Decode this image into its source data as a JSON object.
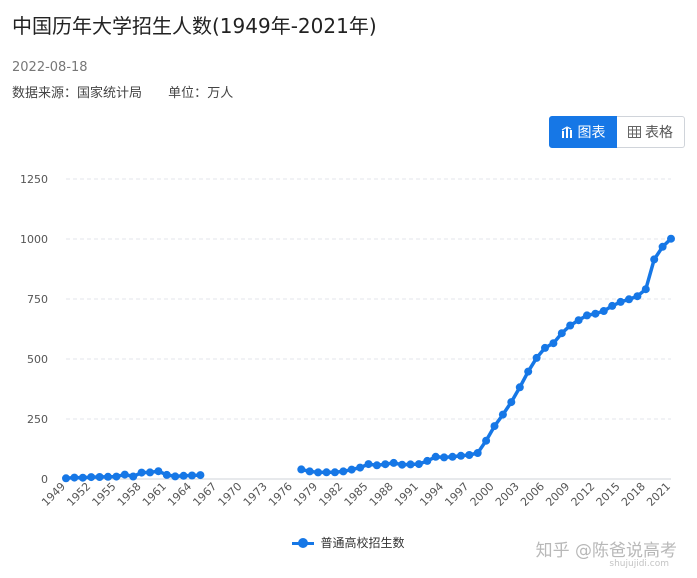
{
  "page": {
    "title": "中国历年大学招生人数(1949年-2021年)",
    "date": "2022-08-18",
    "source_label": "数据来源：",
    "source_value": "国家统计局",
    "unit_label": "单位：",
    "unit_value": "万人"
  },
  "view_toggle": {
    "chart_label": "图表",
    "table_label": "表格",
    "active": "chart",
    "chart_icon": "bar-chart-icon",
    "table_icon": "table-icon"
  },
  "watermark": {
    "text": "知乎 @陈爸说高考",
    "sub": "shujujidi.com"
  },
  "colors": {
    "series": "#1677e6",
    "grid": "#e3e6eb",
    "tick": "#555555"
  },
  "chart_data": {
    "type": "line",
    "title": "",
    "xlabel": "",
    "ylabel": "",
    "ylim": [
      0,
      1250
    ],
    "yticks": [
      0,
      250,
      500,
      750,
      1000,
      1250
    ],
    "xlim": [
      1949,
      2021
    ],
    "xticks": [
      1949,
      1952,
      1955,
      1958,
      1961,
      1964,
      1967,
      1970,
      1973,
      1976,
      1979,
      1982,
      1985,
      1988,
      1991,
      1994,
      1997,
      2000,
      2003,
      2006,
      2009,
      2012,
      2015,
      2018,
      2021
    ],
    "grid": true,
    "legend": "bottom-center",
    "series": [
      {
        "name": "普通高校招生数",
        "points": [
          [
            1949,
            3.1
          ],
          [
            1950,
            5.8
          ],
          [
            1951,
            5.3
          ],
          [
            1952,
            7.9
          ],
          [
            1953,
            8.2
          ],
          [
            1954,
            9.2
          ],
          [
            1955,
            9.8
          ],
          [
            1956,
            18.5
          ],
          [
            1957,
            10.6
          ],
          [
            1958,
            26.5
          ],
          [
            1959,
            27.4
          ],
          [
            1960,
            32.3
          ],
          [
            1961,
            16.9
          ],
          [
            1962,
            10.7
          ],
          [
            1963,
            13.3
          ],
          [
            1964,
            14.7
          ],
          [
            1965,
            16.4
          ],
          [
            1977,
            40.2
          ],
          [
            1978,
            31.5
          ],
          [
            1979,
            27.5
          ],
          [
            1980,
            28.1
          ],
          [
            1981,
            27.9
          ],
          [
            1982,
            31.5
          ],
          [
            1983,
            39.1
          ],
          [
            1984,
            47.5
          ],
          [
            1985,
            61.9
          ],
          [
            1986,
            57.2
          ],
          [
            1987,
            61.7
          ],
          [
            1988,
            67.0
          ],
          [
            1989,
            59.7
          ],
          [
            1990,
            60.9
          ],
          [
            1991,
            62.0
          ],
          [
            1992,
            75.4
          ],
          [
            1993,
            92.4
          ],
          [
            1994,
            90.0
          ],
          [
            1995,
            92.6
          ],
          [
            1996,
            96.6
          ],
          [
            1997,
            100.0
          ],
          [
            1998,
            108.4
          ],
          [
            1999,
            159.7
          ],
          [
            2000,
            220.6
          ],
          [
            2001,
            268.3
          ],
          [
            2002,
            320.5
          ],
          [
            2003,
            382.2
          ],
          [
            2004,
            447.3
          ],
          [
            2005,
            504.5
          ],
          [
            2006,
            546.1
          ],
          [
            2007,
            565.9
          ],
          [
            2008,
            607.7
          ],
          [
            2009,
            639.5
          ],
          [
            2010,
            661.8
          ],
          [
            2011,
            681.5
          ],
          [
            2012,
            688.8
          ],
          [
            2013,
            699.8
          ],
          [
            2014,
            721.4
          ],
          [
            2015,
            737.8
          ],
          [
            2016,
            748.6
          ],
          [
            2017,
            761.5
          ],
          [
            2018,
            791.0
          ],
          [
            2019,
            914.9
          ],
          [
            2020,
            967.5
          ],
          [
            2021,
            1001.3
          ]
        ]
      }
    ]
  }
}
